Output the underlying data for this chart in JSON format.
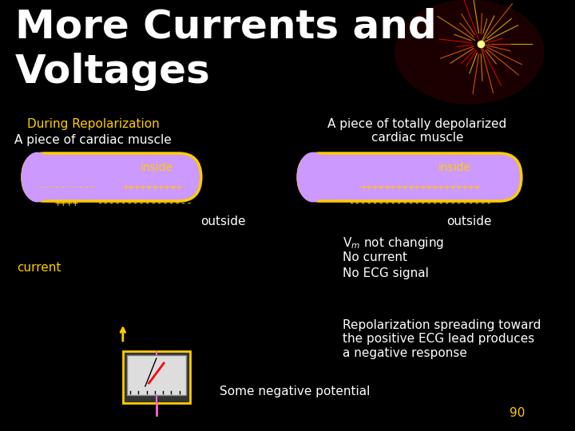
{
  "bg_color": "#000000",
  "title": "More Currents and\nVoltages",
  "title_color": "#ffffff",
  "title_fontsize": 36,
  "title_weight": "bold",
  "subtitle1": "During Repolarization",
  "subtitle1_color": "#ffff00",
  "subtitle2": "A piece of cardiac muscle",
  "subtitle2_color": "#ffffff",
  "subtitle3": "A piece of totally depolarized\ncardiac muscle",
  "subtitle3_color": "#ffffff",
  "inside_label_color": "#ffff00",
  "outside_label_color": "#ffffff",
  "tube_fill": "#cc99ff",
  "tube_edge": "#ffcc00",
  "minus_text": "------------",
  "plus_text": "++++++++++",
  "inside_plus_text": "+++++++++++++++++++",
  "current_label": "current",
  "outside_label": "outside",
  "vm_text": "V  not changing\nm\nNo current\nNo ECG signal",
  "repol_text": "Repolarization spreading toward\nthe positive ECG lead produces\na negative response",
  "some_neg": "Some negative potential",
  "page_num": "90",
  "yellow": "#ffcc00",
  "magenta": "#ff66cc",
  "white": "#ffffff"
}
